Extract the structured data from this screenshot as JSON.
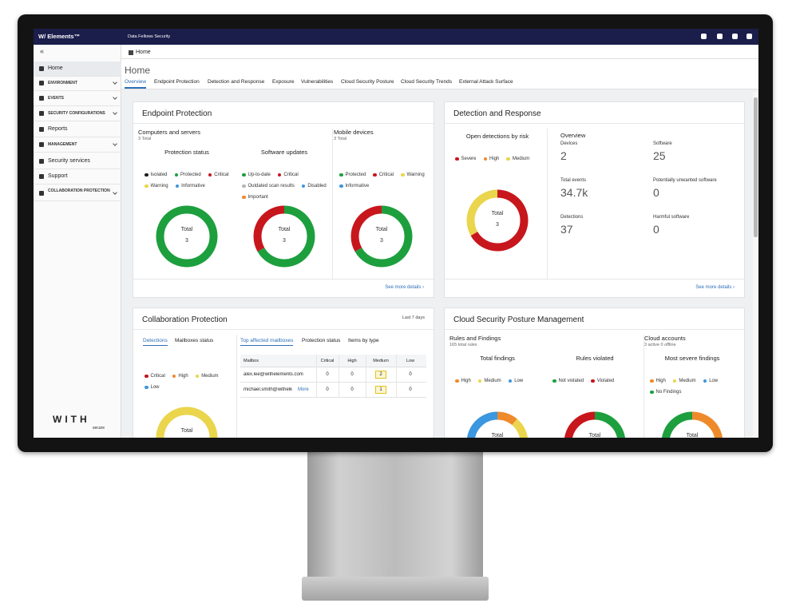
{
  "topbar": {
    "brand": "W/ Elements™",
    "org": "Data Fellows Security"
  },
  "sidebar": {
    "collapse": "«",
    "items": [
      "Home",
      "ENVIRONMENT",
      "EVENTS",
      "SECURITY CONFIGURATIONS",
      "Reports",
      "MANAGEMENT",
      "Security services",
      "Support",
      "COLLABORATION PROTECTION"
    ],
    "logo": "WITH",
    "logo_sub": "secure"
  },
  "breadcrumb": "Home",
  "page_title": "Home",
  "tabs": [
    "Overview",
    "Endpoint Protection",
    "Detection and Response",
    "Exposure",
    "Vulnerabilities",
    "Cloud Security Posture",
    "Cloud Security Trends",
    "External Attack Surface"
  ],
  "endpoint": {
    "title": "Endpoint Protection",
    "computers": {
      "heading": "Computers and servers",
      "total": "3 Total"
    },
    "mobile": {
      "heading": "Mobile devices",
      "total": "3 Total"
    },
    "donuts": [
      {
        "title": "Protection status",
        "center_label": "Total",
        "total": 3,
        "segments": [
          {
            "label": "Isolated",
            "color": "#1f1f1f",
            "value": 0
          },
          {
            "label": "Protected",
            "color": "#1d9f3e",
            "value": 3
          },
          {
            "label": "Critical",
            "color": "#c8161d",
            "value": 0
          },
          {
            "label": "Warning",
            "color": "#ead54c",
            "value": 0
          },
          {
            "label": "Informative",
            "color": "#3a97e0",
            "value": 0
          }
        ]
      },
      {
        "title": "Software updates",
        "center_label": "Total",
        "total": 3,
        "segments": [
          {
            "label": "Up-to-date",
            "color": "#1d9f3e",
            "value": 2
          },
          {
            "label": "Critical",
            "color": "#c8161d",
            "value": 1
          },
          {
            "label": "Outdated scan results",
            "color": "#b5b5b5",
            "value": 0
          },
          {
            "label": "Disabled",
            "color": "#3a97e0",
            "value": 0
          },
          {
            "label": "Important",
            "color": "#ef8a2b",
            "value": 0
          }
        ]
      },
      {
        "center_label": "Total",
        "total": 3,
        "segments": [
          {
            "label": "Protected",
            "color": "#1d9f3e",
            "value": 2
          },
          {
            "label": "Critical",
            "color": "#c8161d",
            "value": 1
          },
          {
            "label": "Warning",
            "color": "#ead54c",
            "value": 0
          },
          {
            "label": "Informative",
            "color": "#3a97e0",
            "value": 0
          }
        ]
      }
    ],
    "more": "See more details ›"
  },
  "detection": {
    "title": "Detection and Response",
    "donut": {
      "title": "Open detections by risk",
      "center_label": "Total",
      "total": 3,
      "segments": [
        {
          "label": "Severe",
          "color": "#c8161d",
          "value": 2
        },
        {
          "label": "High",
          "color": "#ef8a2b",
          "value": 0
        },
        {
          "label": "Medium",
          "color": "#ead54c",
          "value": 1
        }
      ]
    },
    "overview": "Overview",
    "stats": [
      {
        "label": "Devices",
        "value": 2
      },
      {
        "label": "Software",
        "value": 25
      },
      {
        "label": "Total events",
        "value": "34.7k"
      },
      {
        "label": "Potentially unwanted software",
        "value": 0
      },
      {
        "label": "Detections",
        "value": 37
      },
      {
        "label": "Harmful software",
        "value": 0
      }
    ],
    "more": "See more details ›"
  },
  "collaboration": {
    "title": "Collaboration Protection",
    "period": "Last 7 days",
    "left_tabs": [
      "Detections",
      "Mailboxes status"
    ],
    "donut": {
      "center_label": "Total",
      "segments": [
        {
          "label": "Critical",
          "color": "#c8161d",
          "value": 0
        },
        {
          "label": "High",
          "color": "#ef8a2b",
          "value": 0
        },
        {
          "label": "Medium",
          "color": "#ead54c",
          "value": 3
        },
        {
          "label": "Low",
          "color": "#3a97e0",
          "value": 0
        }
      ]
    },
    "right_tabs": [
      "Top affected mailboxes",
      "Protection status",
      "Items by type"
    ],
    "table": {
      "columns": [
        "Mailbox",
        "Critical",
        "High",
        "Medium",
        "Low"
      ],
      "rows": [
        [
          "alex.lee@withelements.com",
          0,
          0,
          2,
          0
        ],
        [
          "michael.smith@withelk",
          0,
          0,
          1,
          0
        ]
      ],
      "more": "More"
    }
  },
  "cloud": {
    "title": "Cloud Security Posture Management",
    "rules": {
      "heading": "Rules and Findings",
      "subtitle": "165 total rules"
    },
    "accounts": {
      "heading": "Cloud accounts",
      "subtitle": "3 active 0 offline"
    },
    "donuts": [
      {
        "title": "Total findings",
        "center_label": "Total",
        "segments": [
          {
            "label": "High",
            "color": "#ef8a2b",
            "value": 1
          },
          {
            "label": "Medium",
            "color": "#ead54c",
            "value": 4
          },
          {
            "label": "Low",
            "color": "#3a97e0",
            "value": 4
          }
        ]
      },
      {
        "title": "Rules violated",
        "center_label": "Total",
        "segments": [
          {
            "label": "Not violated",
            "color": "#1d9f3e",
            "value": 85
          },
          {
            "label": "Violated",
            "color": "#c8161d",
            "value": 80
          }
        ]
      },
      {
        "title": "Most severe findings",
        "center_label": "Total",
        "segments": [
          {
            "label": "High",
            "color": "#ef8a2b",
            "value": 1
          },
          {
            "label": "Medium",
            "color": "#ead54c",
            "value": 0
          },
          {
            "label": "Low",
            "color": "#3a97e0",
            "value": 0
          },
          {
            "label": "No Findings",
            "color": "#1d9f3e",
            "value": 2
          }
        ]
      }
    ]
  }
}
